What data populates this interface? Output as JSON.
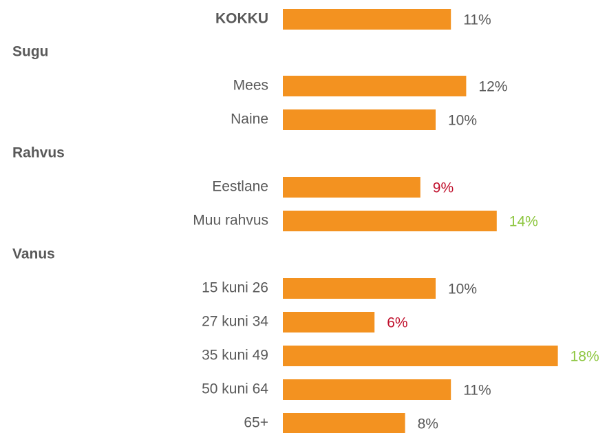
{
  "chart_data": {
    "type": "bar",
    "orientation": "horizontal",
    "color": "#f39220",
    "categories": [
      "KOKKU",
      "Sugu",
      "Mees",
      "Naine",
      "Rahvus",
      "Eestlane",
      "Muu rahvus",
      "Vanus",
      "15 kuni 26",
      "27 kuni 34",
      "35 kuni 49",
      "50 kuni 64",
      "65+"
    ],
    "values": [
      11,
      null,
      12,
      10,
      null,
      9,
      14,
      null,
      10,
      6,
      18,
      11,
      8
    ],
    "value_labels": [
      "11%",
      null,
      "12%",
      "10%",
      null,
      "9%",
      "14%",
      null,
      "10%",
      "6%",
      "18%",
      "11%",
      "8%"
    ],
    "value_label_colors": [
      "#595959",
      null,
      "#595959",
      "#595959",
      null,
      "#c0102c",
      "#8dc63f",
      null,
      "#595959",
      "#c0102c",
      "#8dc63f",
      "#595959",
      "#595959"
    ]
  }
}
